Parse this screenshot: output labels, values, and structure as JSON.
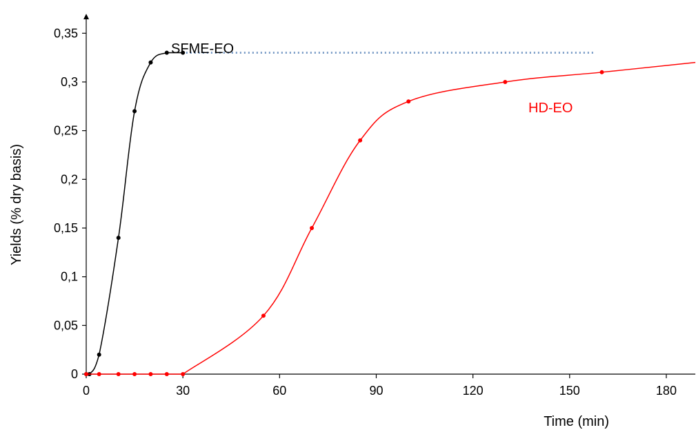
{
  "chart_data": {
    "type": "line",
    "title": "",
    "xlabel": "Time (min)",
    "ylabel": "Yields (% dry basis)",
    "xlim": [
      0,
      189
    ],
    "ylim": [
      0,
      0.37
    ],
    "x_ticks": [
      0,
      30,
      60,
      90,
      120,
      150,
      180
    ],
    "x_tick_labels": [
      "0",
      "30",
      "60",
      "90",
      "120",
      "150",
      "180"
    ],
    "y_ticks": [
      0,
      0.05,
      0.1,
      0.15,
      0.2,
      0.25,
      0.3,
      0.35
    ],
    "y_tick_labels": [
      "0",
      "0,05",
      "0,1",
      "0,15",
      "0,2",
      "0,25",
      "0,3",
      "0,35"
    ],
    "grid": false,
    "legend": "none",
    "series": [
      {
        "name": "SFME-EO",
        "color": "#000000",
        "x": [
          0,
          1,
          4,
          10,
          15,
          20,
          25,
          30
        ],
        "y": [
          0,
          0,
          0.02,
          0.14,
          0.27,
          0.32,
          0.33,
          0.33
        ]
      },
      {
        "name": "HD-EO",
        "color": "#ff0000",
        "x": [
          0,
          4,
          10,
          15,
          20,
          25,
          30,
          55,
          70,
          85,
          100,
          130,
          160
        ],
        "y": [
          0,
          0,
          0,
          0,
          0,
          0,
          0,
          0.06,
          0.15,
          0.24,
          0.28,
          0.3,
          0.31
        ],
        "curve_extends_to": [
          189,
          0.32
        ]
      }
    ],
    "annotations": [
      {
        "type": "dotted-line",
        "color": "#7a9cc6",
        "x": [
          31,
          158
        ],
        "y": [
          0.33,
          0.33
        ]
      }
    ]
  }
}
